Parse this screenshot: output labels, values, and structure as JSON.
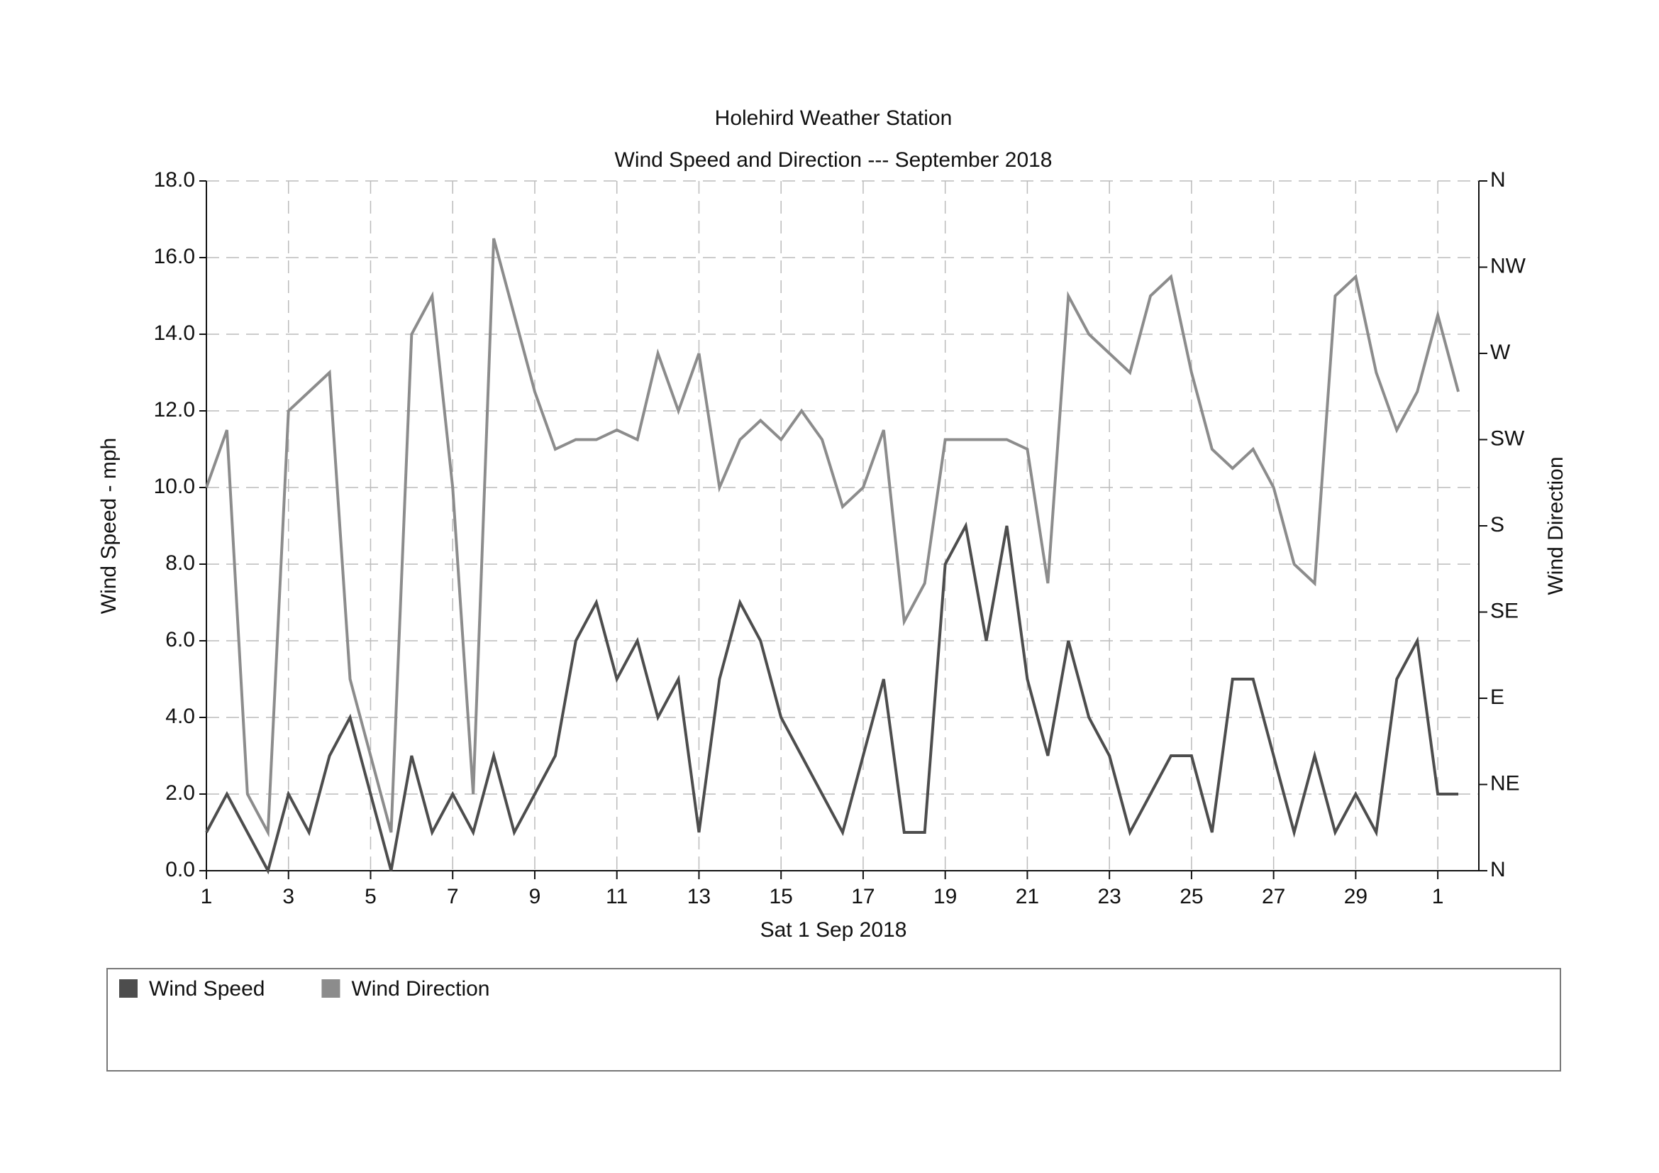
{
  "chart_data": {
    "type": "line",
    "title": "Holehird Weather Station",
    "subtitle": "Wind Speed and Direction --- September 2018",
    "x_label": "Sat 1 Sep 2018",
    "y_label": "Wind Speed - mph",
    "y2_label": "Wind Direction",
    "legend": "bottom-left",
    "grid": true,
    "xlim": [
      0,
      31
    ],
    "xticks": [
      {
        "value": 0,
        "label": "1"
      },
      {
        "value": 2,
        "label": "3"
      },
      {
        "value": 4,
        "label": "5"
      },
      {
        "value": 6,
        "label": "7"
      },
      {
        "value": 8,
        "label": "9"
      },
      {
        "value": 10,
        "label": "11"
      },
      {
        "value": 12,
        "label": "13"
      },
      {
        "value": 14,
        "label": "15"
      },
      {
        "value": 16,
        "label": "17"
      },
      {
        "value": 18,
        "label": "19"
      },
      {
        "value": 20,
        "label": "21"
      },
      {
        "value": 22,
        "label": "23"
      },
      {
        "value": 24,
        "label": "25"
      },
      {
        "value": 26,
        "label": "27"
      },
      {
        "value": 28,
        "label": "29"
      },
      {
        "value": 30,
        "label": "1"
      }
    ],
    "ylim": [
      0,
      18
    ],
    "yticks": [
      {
        "value": 0,
        "label": "0.0"
      },
      {
        "value": 2,
        "label": "2.0"
      },
      {
        "value": 4,
        "label": "4.0"
      },
      {
        "value": 6,
        "label": "6.0"
      },
      {
        "value": 8,
        "label": "8.0"
      },
      {
        "value": 10,
        "label": "10.0"
      },
      {
        "value": 12,
        "label": "12.0"
      },
      {
        "value": 14,
        "label": "14.0"
      },
      {
        "value": 16,
        "label": "16.0"
      },
      {
        "value": 18,
        "label": "18.0"
      }
    ],
    "y2lim": [
      0,
      360
    ],
    "y2ticks": [
      {
        "value": 0,
        "label": "N"
      },
      {
        "value": 45,
        "label": "NE"
      },
      {
        "value": 90,
        "label": "E"
      },
      {
        "value": 135,
        "label": "SE"
      },
      {
        "value": 180,
        "label": "S"
      },
      {
        "value": 225,
        "label": "SW"
      },
      {
        "value": 270,
        "label": "W"
      },
      {
        "value": 315,
        "label": "NW"
      },
      {
        "value": 360,
        "label": "N"
      }
    ],
    "x": [
      0,
      0.5,
      1,
      1.5,
      2,
      2.5,
      3,
      3.5,
      4,
      4.5,
      5,
      5.5,
      6,
      6.5,
      7,
      7.5,
      8,
      8.5,
      9,
      9.5,
      10,
      10.5,
      11,
      11.5,
      12,
      12.5,
      13,
      13.5,
      14,
      14.5,
      15,
      15.5,
      16,
      16.5,
      17,
      17.5,
      18,
      18.5,
      19,
      19.5,
      20,
      20.5,
      21,
      21.5,
      22,
      22.5,
      23,
      23.5,
      24,
      24.5,
      25,
      25.5,
      26,
      26.5,
      27,
      27.5,
      28,
      28.5,
      29,
      29.5,
      30,
      30.5
    ],
    "series": [
      {
        "name": "Wind Direction",
        "color": "#8c8c8c",
        "axis": "y2",
        "values": [
          200,
          230,
          40,
          20,
          240,
          250,
          260,
          100,
          60,
          20,
          280,
          300,
          200,
          40,
          330,
          290,
          250,
          220,
          225,
          225,
          230,
          225,
          270,
          240,
          270,
          200,
          225,
          235,
          225,
          240,
          225,
          190,
          200,
          230,
          130,
          150,
          225,
          225,
          225,
          225,
          220,
          150,
          300,
          280,
          270,
          260,
          300,
          310,
          260,
          220,
          210,
          220,
          200,
          160,
          150,
          300,
          310,
          260,
          230,
          250,
          290,
          250
        ]
      },
      {
        "name": "Wind Speed",
        "color": "#4d4d4d",
        "values": [
          1,
          2,
          1,
          0,
          2,
          1,
          3,
          4,
          2,
          0,
          3,
          1,
          2,
          1,
          3,
          1,
          2,
          3,
          6,
          7,
          5,
          6,
          4,
          5,
          1,
          5,
          7,
          6,
          4,
          3,
          2,
          1,
          3,
          5,
          1,
          1,
          8,
          9,
          6,
          9,
          5,
          3,
          6,
          4,
          3,
          1,
          2,
          3,
          3,
          1,
          5,
          5,
          3,
          1,
          3,
          1,
          2,
          1,
          5,
          6,
          2,
          2
        ]
      }
    ]
  }
}
